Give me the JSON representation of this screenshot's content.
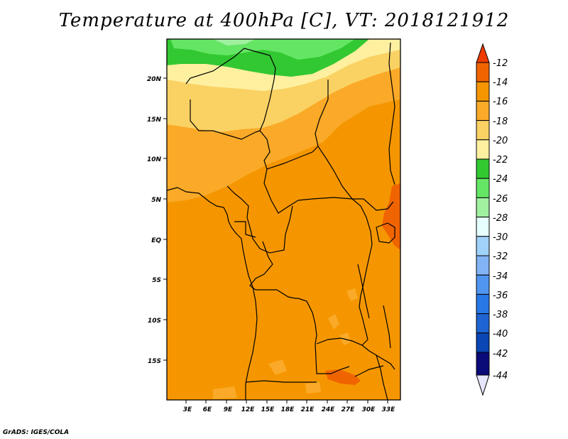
{
  "title": "Temperature at 400hPa [C], VT: 2018121912",
  "credit": "GrADS: IGES/COLA",
  "map": {
    "lon_ticks": [
      "3E",
      "6E",
      "9E",
      "12E",
      "15E",
      "18E",
      "21E",
      "24E",
      "27E",
      "30E",
      "33E"
    ],
    "lat_ticks": [
      "20N",
      "15N",
      "10N",
      "5N",
      "EQ",
      "5S",
      "10S",
      "15S"
    ]
  },
  "colorbar": {
    "labels": [
      "-12",
      "-14",
      "-16",
      "-18",
      "-20",
      "-22",
      "-24",
      "-26",
      "-28",
      "-30",
      "-32",
      "-34",
      "-36",
      "-38",
      "-40",
      "-42",
      "-44"
    ],
    "colors": [
      "#f03c00",
      "#f06400",
      "#f59600",
      "#faaa28",
      "#fad264",
      "#fff0a0",
      "#32c832",
      "#64e664",
      "#a0f0a0",
      "#e6ffff",
      "#a0d2fa",
      "#82b4f5",
      "#5096f0",
      "#2878e6",
      "#1e64d2",
      "#0a46b4",
      "#0a0a78",
      "#e6e6ff"
    ]
  },
  "colors": {
    "deep_orange": "#f59600",
    "light_orange": "#faaa28",
    "yellow": "#fad264",
    "pale_yellow": "#fff0a0",
    "green": "#32c832",
    "light_green": "#64e664",
    "red_orange": "#f06400"
  }
}
